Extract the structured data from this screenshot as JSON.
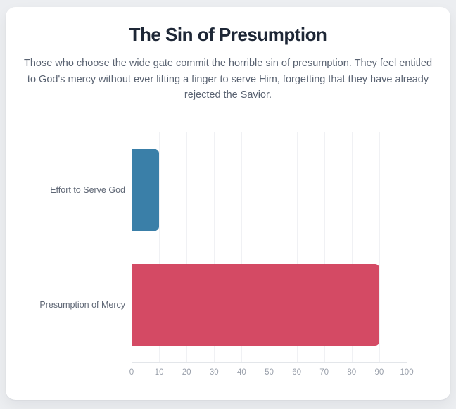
{
  "header": {
    "title": "The Sin of Presumption",
    "subtitle": "Those who choose the wide gate commit the horrible sin of presumption. They feel entitled to God's mercy without ever lifting a finger to serve Him, forgetting that they have already rejected the Savior."
  },
  "chart_data": {
    "type": "bar",
    "orientation": "horizontal",
    "title": "The Sin of Presumption",
    "categories": [
      "Effort to Serve God",
      "Presumption of Mercy"
    ],
    "values": [
      10,
      90
    ],
    "bar_colors": [
      "#3a7fa8",
      "#d44a64"
    ],
    "xlabel": "",
    "ylabel": "",
    "xlim": [
      0,
      100
    ],
    "x_ticks": [
      0,
      10,
      20,
      30,
      40,
      50,
      60,
      70,
      80,
      90,
      100
    ],
    "grid": true,
    "legend": false
  },
  "colors": {
    "bar_blue": "#3a7fa8",
    "bar_red": "#d44a64",
    "title_text": "#1e2736",
    "body_text": "#5a6372",
    "axis_text": "#9aa0ab",
    "gridline": "#f0f1f4",
    "card_background": "#ffffff",
    "page_background": "#eceef1"
  }
}
